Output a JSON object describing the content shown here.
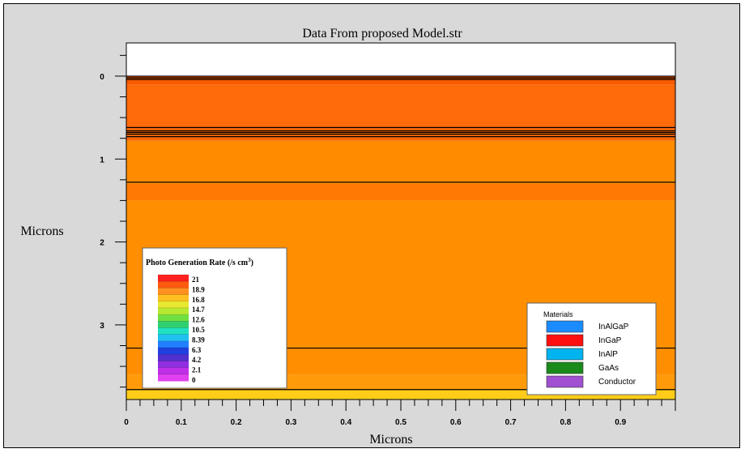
{
  "chart_data": {
    "type": "heatmap",
    "title": "Data From proposed Model.str",
    "xlabel": "Microns",
    "ylabel": "Microns",
    "xlim": [
      0,
      1
    ],
    "ylim": [
      -0.4,
      3.9
    ],
    "y_inverted": true,
    "x_ticks": [
      "0",
      "0.1",
      "0.2",
      "0.3",
      "0.4",
      "0.5",
      "0.6",
      "0.7",
      "0.8",
      "0.9"
    ],
    "y_ticks": [
      "0",
      "1",
      "2",
      "3"
    ],
    "x_tick_values": [
      0,
      0.1,
      0.2,
      0.3,
      0.4,
      0.5,
      0.6,
      0.7,
      0.8,
      0.9
    ],
    "y_tick_values": [
      0,
      1,
      2,
      3
    ],
    "regions": [
      {
        "y0": -0.4,
        "y1": 0.0,
        "color": "#ffffff"
      },
      {
        "y0": 0.0,
        "y1": 0.1,
        "color": "#fa5a00"
      },
      {
        "y0": 0.1,
        "y1": 0.62,
        "color": "#ff6a0a"
      },
      {
        "y0": 0.62,
        "y1": 0.78,
        "color": "#fb6805"
      },
      {
        "y0": 0.78,
        "y1": 1.3,
        "color": "#ff8c00"
      },
      {
        "y0": 1.3,
        "y1": 1.5,
        "color": "#ff7a05"
      },
      {
        "y0": 1.5,
        "y1": 3.6,
        "color": "#ff8f00"
      },
      {
        "y0": 3.6,
        "y1": 3.78,
        "color": "#ff9b0a"
      },
      {
        "y0": 3.78,
        "y1": 3.9,
        "color": "#ffcc1a"
      }
    ],
    "boundaries": [
      0.0,
      0.02,
      0.04,
      0.62,
      0.66,
      0.68,
      0.7,
      0.73,
      1.28,
      3.28,
      3.78
    ],
    "legend_photo": {
      "title": "Photo Generation  Rate  (/s cm",
      "title_sup": "3",
      "title_end": ")",
      "labels": [
        "21",
        "18.9",
        "16.8",
        "14.7",
        "12.6",
        "10.5",
        "8.39",
        "6.3",
        "4.2",
        "2.1",
        "0"
      ],
      "colors": [
        "#ff2020",
        "#ff5a10",
        "#ff9020",
        "#ffc020",
        "#e8e830",
        "#b8e830",
        "#70e040",
        "#30d070",
        "#20e0c0",
        "#20c0f0",
        "#2080ff",
        "#2040e0",
        "#5030d0",
        "#9030e0",
        "#c030e8",
        "#e040f0"
      ]
    },
    "legend_materials": {
      "title": "Materials",
      "items": [
        {
          "label": "InAlGaP",
          "color": "#1a8cff"
        },
        {
          "label": "InGaP",
          "color": "#ff1010"
        },
        {
          "label": "InAlP",
          "color": "#00b4f0"
        },
        {
          "label": "GaAs",
          "color": "#1a8a1a"
        },
        {
          "label": "Conductor",
          "color": "#a050d0"
        }
      ]
    }
  }
}
